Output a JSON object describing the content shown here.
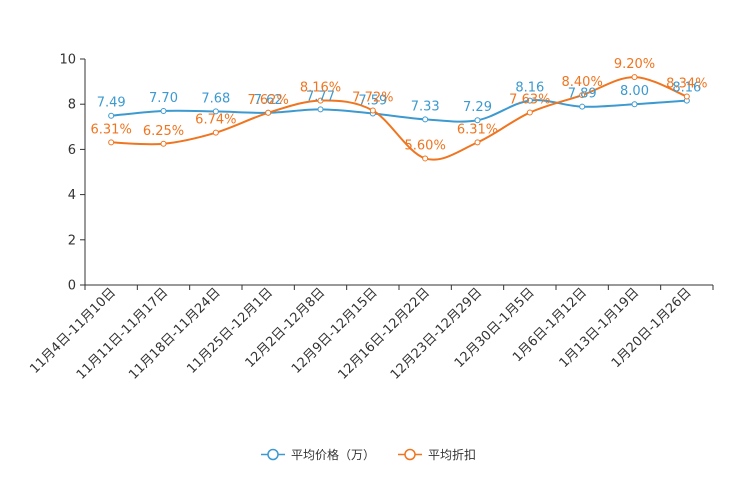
{
  "chart_data": {
    "type": "line",
    "title": "",
    "xlabel": "",
    "ylabel": "",
    "ylim": [
      0,
      10
    ],
    "yticks": [
      0,
      2,
      4,
      6,
      8,
      10
    ],
    "grid": false,
    "legend_position": "bottom",
    "smooth": true,
    "categories": [
      "11月4日-11月10日",
      "11月11日-11月17日",
      "11月18日-11月24日",
      "11月25日-12月1日",
      "12月2日-12月8日",
      "12月9日-12月15日",
      "12月16日-12月22日",
      "12月23日-12月29日",
      "12月30日-1月5日",
      "1月6日-1月12日",
      "1月13日-1月19日",
      "1月20日-1月26日"
    ],
    "series": [
      {
        "name": "平均价格（万）",
        "color": "#3c9ad0",
        "values": [
          7.49,
          7.7,
          7.68,
          7.62,
          7.77,
          7.59,
          7.33,
          7.29,
          8.16,
          7.89,
          8.0,
          8.16
        ],
        "labels": [
          "7.49",
          "7.70",
          "7.68",
          "7.62",
          "7.77",
          "7.59",
          "7.33",
          "7.29",
          "8.16",
          "7.89",
          "8.00",
          "8.16"
        ]
      },
      {
        "name": "平均折扣",
        "color": "#f07520",
        "values": [
          6.31,
          6.25,
          6.74,
          7.62,
          8.16,
          7.72,
          5.6,
          6.31,
          7.63,
          8.4,
          9.2,
          8.34
        ],
        "labels": [
          "6.31%",
          "6.25%",
          "6.74%",
          "7.62%",
          "8.16%",
          "7.72%",
          "5.60%",
          "6.31%",
          "7.63%",
          "8.40%",
          "9.20%",
          "8.34%"
        ]
      }
    ]
  }
}
